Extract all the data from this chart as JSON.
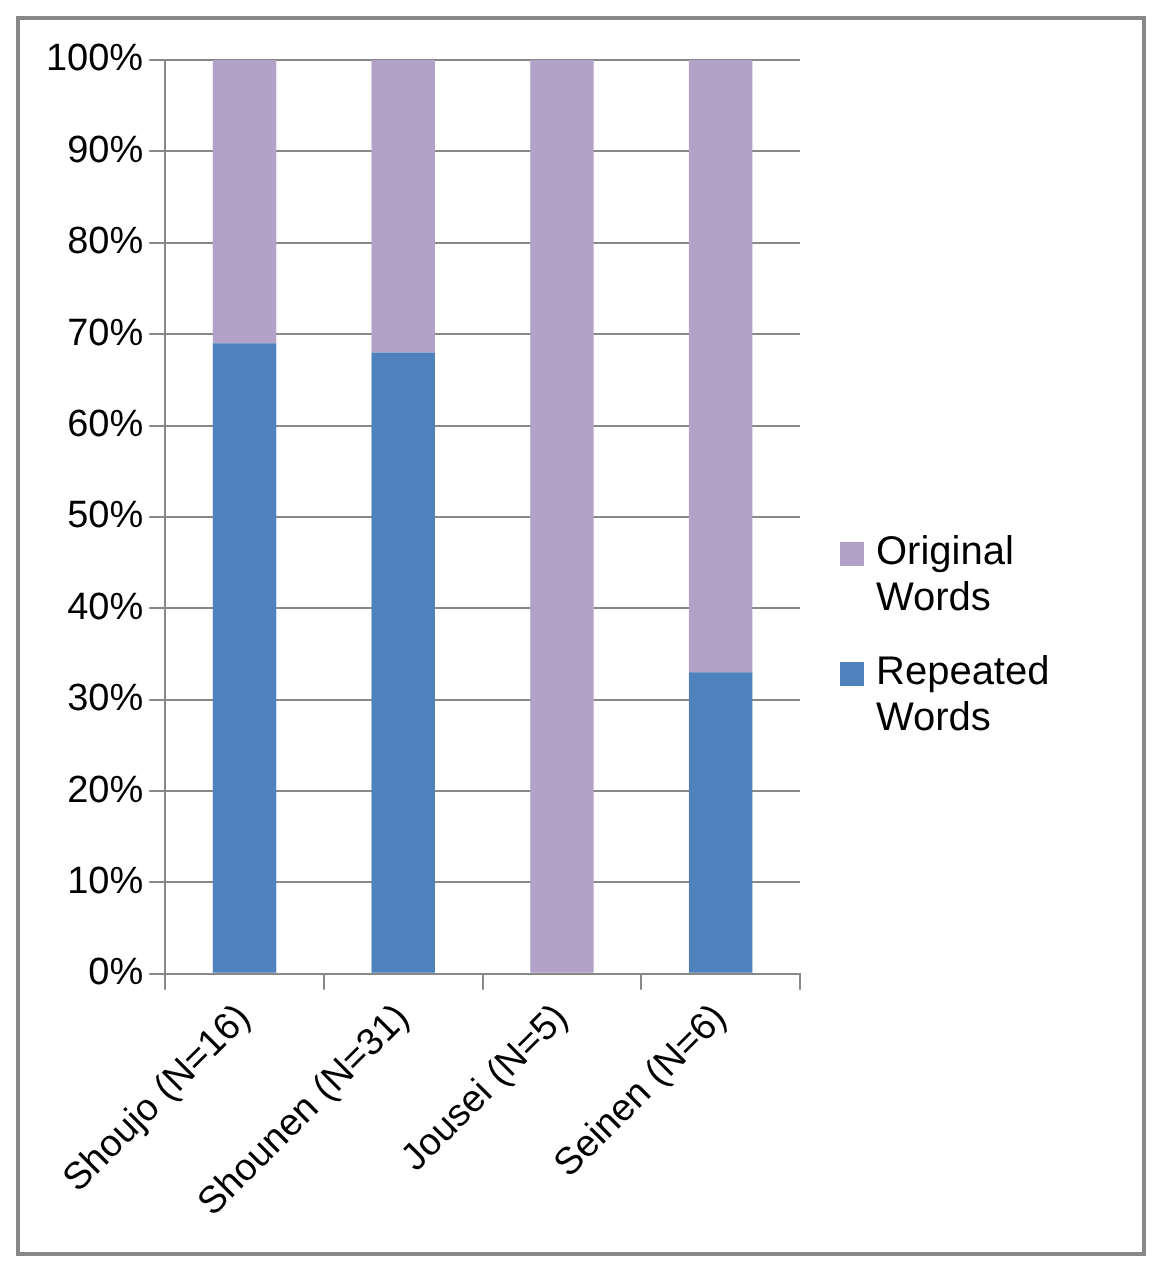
{
  "chart_data": {
    "type": "bar",
    "stacked": true,
    "categories": [
      "Shoujo (N=16)",
      "Shounen (N=31)",
      "Jousei (N=5)",
      "Seinen (N=6)"
    ],
    "series": [
      {
        "name": "Repeated Words",
        "color": "#4f81bd",
        "values": [
          69,
          68,
          0,
          33
        ]
      },
      {
        "name": "Original Words",
        "color": "#b3a2c7",
        "values": [
          31,
          32,
          100,
          67
        ]
      }
    ],
    "ylim": [
      0,
      100
    ],
    "yticks": [
      {
        "value": 0,
        "label": "0%"
      },
      {
        "value": 10,
        "label": "10%"
      },
      {
        "value": 20,
        "label": "20%"
      },
      {
        "value": 30,
        "label": "30%"
      },
      {
        "value": 40,
        "label": "40%"
      },
      {
        "value": 50,
        "label": "50%"
      },
      {
        "value": 60,
        "label": "60%"
      },
      {
        "value": 70,
        "label": "70%"
      },
      {
        "value": 80,
        "label": "80%"
      },
      {
        "value": 90,
        "label": "90%"
      },
      {
        "value": 100,
        "label": "100%"
      }
    ],
    "grid": "y",
    "legend": "right"
  }
}
